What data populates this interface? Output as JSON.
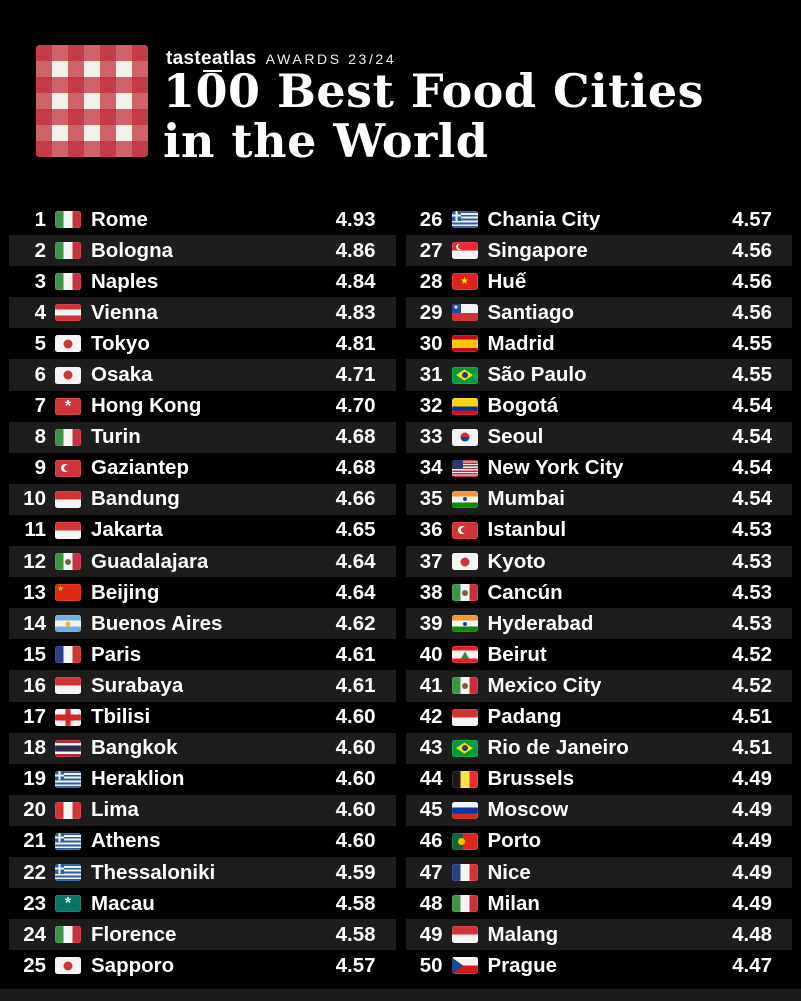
{
  "header": {
    "brand": "tasteatlas",
    "awards": "AWARDS 23/24",
    "title_line1": "100 Best Food Cities",
    "title_line2": "in the World"
  },
  "chart_data": {
    "type": "table",
    "title": "100 Best Food Cities in the World",
    "subtitle": "tasteatlas AWARDS 23/24",
    "columns": [
      "rank",
      "flag",
      "city",
      "score"
    ],
    "score_range": [
      4.47,
      4.93
    ],
    "rows_left": [
      {
        "rank": "1",
        "city": "Rome",
        "country": "Italy",
        "flag": "it",
        "score": "4.93"
      },
      {
        "rank": "2",
        "city": "Bologna",
        "country": "Italy",
        "flag": "it",
        "score": "4.86"
      },
      {
        "rank": "3",
        "city": "Naples",
        "country": "Italy",
        "flag": "it",
        "score": "4.84"
      },
      {
        "rank": "4",
        "city": "Vienna",
        "country": "Austria",
        "flag": "at",
        "score": "4.83"
      },
      {
        "rank": "5",
        "city": "Tokyo",
        "country": "Japan",
        "flag": "jp",
        "score": "4.81"
      },
      {
        "rank": "6",
        "city": "Osaka",
        "country": "Japan",
        "flag": "jp",
        "score": "4.71"
      },
      {
        "rank": "7",
        "city": "Hong Kong",
        "country": "Hong Kong",
        "flag": "hk",
        "score": "4.70"
      },
      {
        "rank": "8",
        "city": "Turin",
        "country": "Italy",
        "flag": "it",
        "score": "4.68"
      },
      {
        "rank": "9",
        "city": "Gaziantep",
        "country": "Turkey",
        "flag": "tr",
        "score": "4.68"
      },
      {
        "rank": "10",
        "city": "Bandung",
        "country": "Indonesia",
        "flag": "id",
        "score": "4.66"
      },
      {
        "rank": "11",
        "city": "Jakarta",
        "country": "Indonesia",
        "flag": "id",
        "score": "4.65"
      },
      {
        "rank": "12",
        "city": "Guadalajara",
        "country": "Mexico",
        "flag": "mx",
        "score": "4.64"
      },
      {
        "rank": "13",
        "city": "Beijing",
        "country": "China",
        "flag": "cn",
        "score": "4.64"
      },
      {
        "rank": "14",
        "city": "Buenos Aires",
        "country": "Argentina",
        "flag": "ar",
        "score": "4.62"
      },
      {
        "rank": "15",
        "city": "Paris",
        "country": "France",
        "flag": "fr",
        "score": "4.61"
      },
      {
        "rank": "16",
        "city": "Surabaya",
        "country": "Indonesia",
        "flag": "id",
        "score": "4.61"
      },
      {
        "rank": "17",
        "city": "Tbilisi",
        "country": "Georgia",
        "flag": "ge",
        "score": "4.60"
      },
      {
        "rank": "18",
        "city": "Bangkok",
        "country": "Thailand",
        "flag": "th",
        "score": "4.60"
      },
      {
        "rank": "19",
        "city": "Heraklion",
        "country": "Greece",
        "flag": "gr",
        "score": "4.60"
      },
      {
        "rank": "20",
        "city": "Lima",
        "country": "Peru",
        "flag": "pe",
        "score": "4.60"
      },
      {
        "rank": "21",
        "city": "Athens",
        "country": "Greece",
        "flag": "gr",
        "score": "4.60"
      },
      {
        "rank": "22",
        "city": "Thessaloniki",
        "country": "Greece",
        "flag": "gr",
        "score": "4.59"
      },
      {
        "rank": "23",
        "city": "Macau",
        "country": "Macau",
        "flag": "mo",
        "score": "4.58"
      },
      {
        "rank": "24",
        "city": "Florence",
        "country": "Italy",
        "flag": "it",
        "score": "4.58"
      },
      {
        "rank": "25",
        "city": "Sapporo",
        "country": "Japan",
        "flag": "jp",
        "score": "4.57"
      }
    ],
    "rows_right": [
      {
        "rank": "26",
        "city": "Chania City",
        "country": "Greece",
        "flag": "gr",
        "score": "4.57"
      },
      {
        "rank": "27",
        "city": "Singapore",
        "country": "Singapore",
        "flag": "sg",
        "score": "4.56"
      },
      {
        "rank": "28",
        "city": "Huế",
        "country": "Vietnam",
        "flag": "vn",
        "score": "4.56"
      },
      {
        "rank": "29",
        "city": "Santiago",
        "country": "Chile",
        "flag": "cl",
        "score": "4.56"
      },
      {
        "rank": "30",
        "city": "Madrid",
        "country": "Spain",
        "flag": "es",
        "score": "4.55"
      },
      {
        "rank": "31",
        "city": "São Paulo",
        "country": "Brazil",
        "flag": "br",
        "score": "4.55"
      },
      {
        "rank": "32",
        "city": "Bogotá",
        "country": "Colombia",
        "flag": "co",
        "score": "4.54"
      },
      {
        "rank": "33",
        "city": "Seoul",
        "country": "South Korea",
        "flag": "kr",
        "score": "4.54"
      },
      {
        "rank": "34",
        "city": "New York City",
        "country": "United States",
        "flag": "us",
        "score": "4.54"
      },
      {
        "rank": "35",
        "city": "Mumbai",
        "country": "India",
        "flag": "in",
        "score": "4.54"
      },
      {
        "rank": "36",
        "city": "Istanbul",
        "country": "Turkey",
        "flag": "tr",
        "score": "4.53"
      },
      {
        "rank": "37",
        "city": "Kyoto",
        "country": "Japan",
        "flag": "jp",
        "score": "4.53"
      },
      {
        "rank": "38",
        "city": "Cancún",
        "country": "Mexico",
        "flag": "mx",
        "score": "4.53"
      },
      {
        "rank": "39",
        "city": "Hyderabad",
        "country": "India",
        "flag": "in",
        "score": "4.53"
      },
      {
        "rank": "40",
        "city": "Beirut",
        "country": "Lebanon",
        "flag": "lb",
        "score": "4.52"
      },
      {
        "rank": "41",
        "city": "Mexico City",
        "country": "Mexico",
        "flag": "mx",
        "score": "4.52"
      },
      {
        "rank": "42",
        "city": "Padang",
        "country": "Indonesia",
        "flag": "id",
        "score": "4.51"
      },
      {
        "rank": "43",
        "city": "Rio de Janeiro",
        "country": "Brazil",
        "flag": "br",
        "score": "4.51"
      },
      {
        "rank": "44",
        "city": "Brussels",
        "country": "Belgium",
        "flag": "be",
        "score": "4.49"
      },
      {
        "rank": "45",
        "city": "Moscow",
        "country": "Russia",
        "flag": "ru",
        "score": "4.49"
      },
      {
        "rank": "46",
        "city": "Porto",
        "country": "Portugal",
        "flag": "pt",
        "score": "4.49"
      },
      {
        "rank": "47",
        "city": "Nice",
        "country": "France",
        "flag": "fr",
        "score": "4.49"
      },
      {
        "rank": "48",
        "city": "Milan",
        "country": "Italy",
        "flag": "it",
        "score": "4.49"
      },
      {
        "rank": "49",
        "city": "Malang",
        "country": "Indonesia",
        "flag": "id",
        "score": "4.48"
      },
      {
        "rank": "50",
        "city": "Prague",
        "country": "Czech Republic",
        "flag": "cz",
        "score": "4.47"
      }
    ]
  },
  "colors": {
    "background": "#000000",
    "stripe": "#1d1d1d",
    "text": "#ffffff",
    "logo_red": "#bf2d39"
  }
}
